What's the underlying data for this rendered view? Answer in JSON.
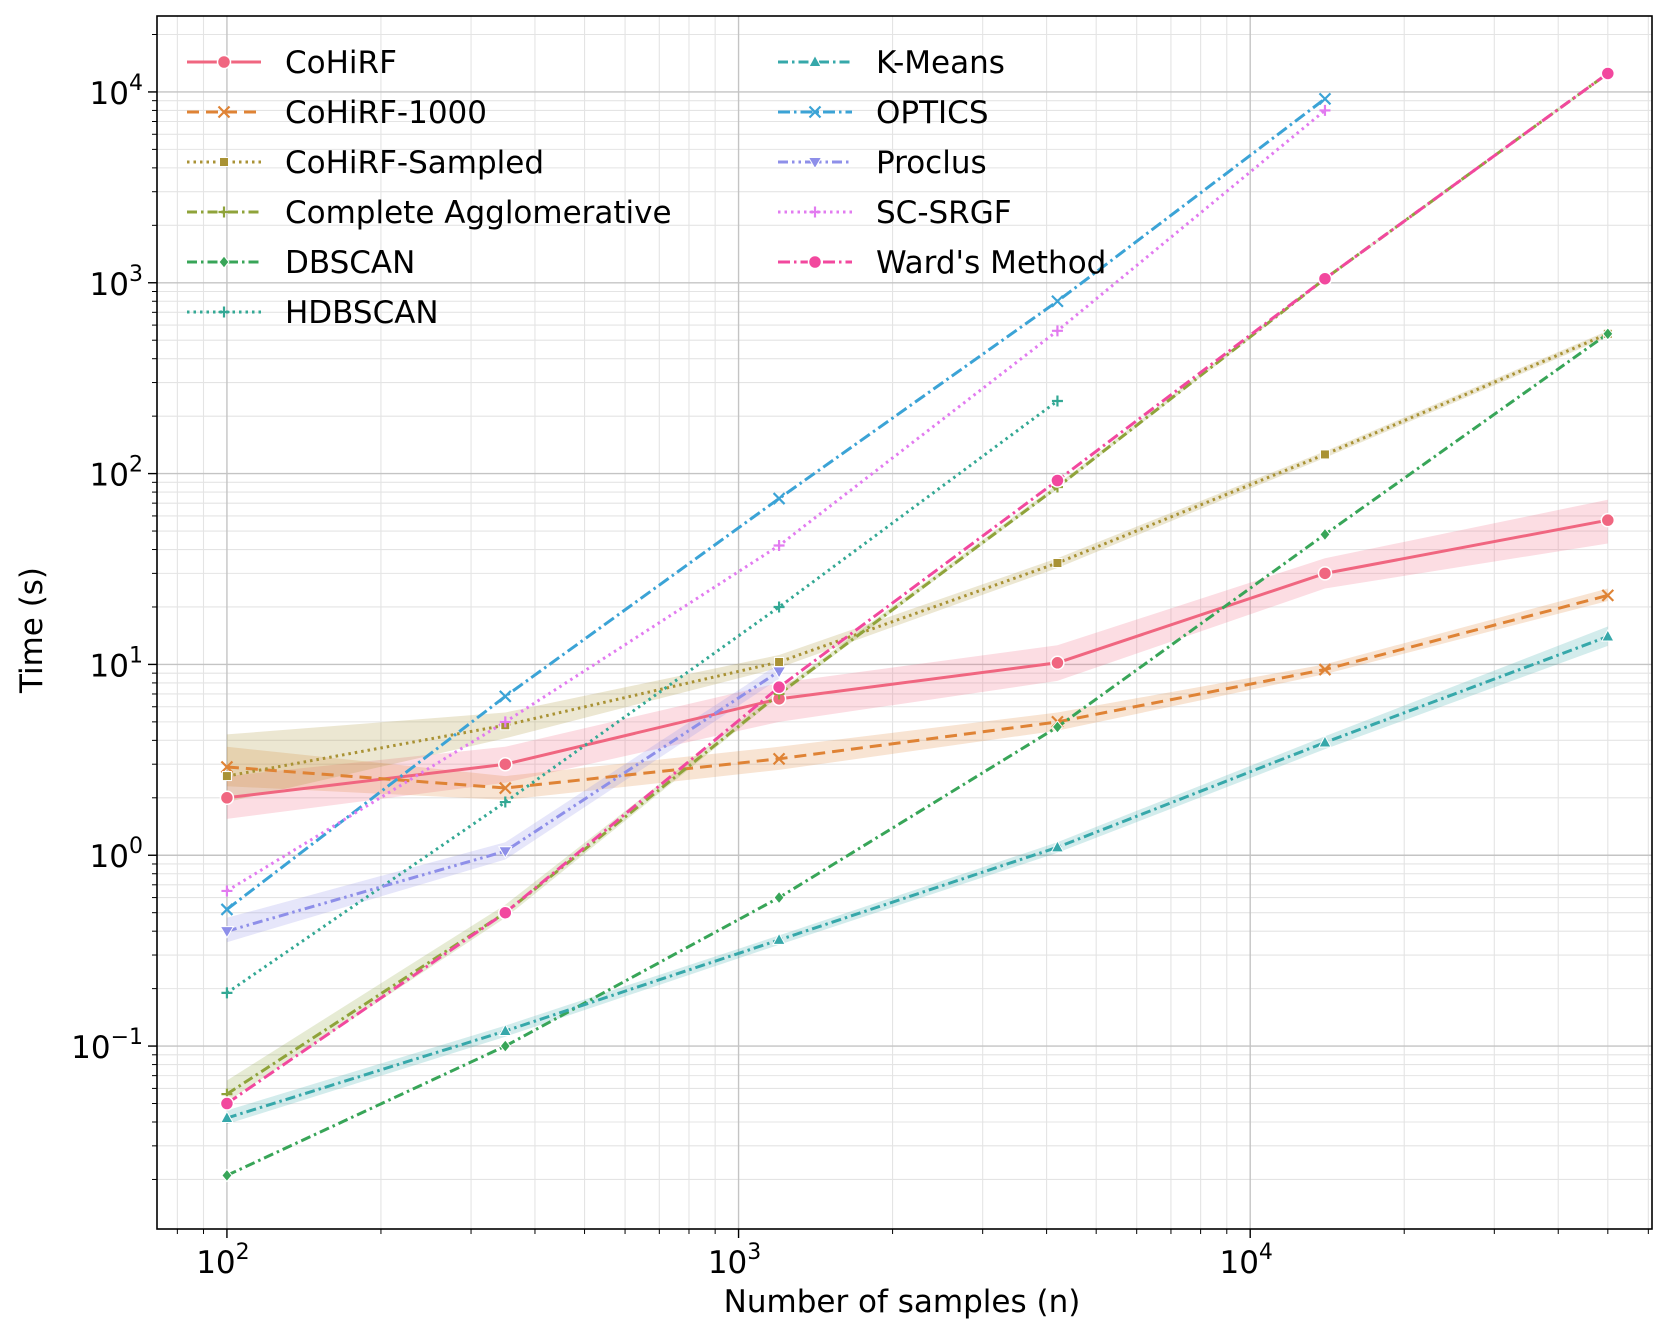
{
  "chart_data": {
    "type": "line",
    "title": "",
    "xlabel": "Number of samples (n)",
    "ylabel": "Time (s)",
    "xscale": "log",
    "yscale": "log",
    "xlim": [
      73,
      61000
    ],
    "ylim": [
      0.011,
      25000
    ],
    "grid": true,
    "legend_position": "top-left",
    "x_ticks": [
      {
        "value": 100,
        "base": "10",
        "exp": "2"
      },
      {
        "value": 1000,
        "base": "10",
        "exp": "3"
      },
      {
        "value": 10000,
        "base": "10",
        "exp": "4"
      }
    ],
    "y_ticks": [
      {
        "value": 0.1,
        "base": "10",
        "exp": "−1"
      },
      {
        "value": 1,
        "base": "10",
        "exp": "0"
      },
      {
        "value": 10,
        "base": "10",
        "exp": "1"
      },
      {
        "value": 100,
        "base": "10",
        "exp": "2"
      },
      {
        "value": 1000,
        "base": "10",
        "exp": "3"
      },
      {
        "value": 10000,
        "base": "10",
        "exp": "4"
      }
    ],
    "series": [
      {
        "name": "CoHiRF",
        "color": "#f06680",
        "dash": "",
        "marker": "circle",
        "x": [
          100,
          350,
          1200,
          4200,
          14000,
          50000
        ],
        "y": [
          2.0,
          3.0,
          6.6,
          10.2,
          30,
          57
        ],
        "band_low": [
          1.55,
          2.4,
          5.0,
          8.2,
          25,
          43
        ],
        "band_high": [
          2.6,
          3.7,
          8.0,
          12.6,
          36,
          73
        ]
      },
      {
        "name": "CoHiRF-1000",
        "color": "#df8335",
        "dash": "12,7",
        "marker": "x",
        "x": [
          100,
          350,
          1200,
          4200,
          14000,
          50000
        ],
        "y": [
          2.9,
          2.25,
          3.2,
          5.0,
          9.4,
          23
        ],
        "band_low": [
          2.3,
          1.95,
          2.8,
          4.5,
          8.9,
          21.5
        ],
        "band_high": [
          3.7,
          2.6,
          3.7,
          5.6,
          10.0,
          25
        ]
      },
      {
        "name": "CoHiRF-Sampled",
        "color": "#a99234",
        "dash": "2.5,4",
        "marker": "square",
        "x": [
          100,
          350,
          1200,
          4200,
          14000,
          50000
        ],
        "y": [
          2.6,
          4.8,
          10.3,
          34,
          126,
          540
        ],
        "band_low": [
          1.9,
          4.1,
          9.6,
          32,
          121,
          520
        ],
        "band_high": [
          4.3,
          5.6,
          11.2,
          36,
          131,
          560
        ]
      },
      {
        "name": "Complete Agglomerative",
        "color": "#8fa33a",
        "dash": "10,4,2.5,4",
        "marker": "plus",
        "x": [
          100,
          350,
          1200,
          4200,
          14000,
          50000
        ],
        "y": [
          0.056,
          0.5,
          7.0,
          85,
          1050,
          12500
        ],
        "band_low": [
          0.051,
          0.47,
          6.8,
          83,
          1030,
          12300
        ],
        "band_high": [
          0.066,
          0.55,
          7.3,
          88,
          1070,
          12700
        ]
      },
      {
        "name": "DBSCAN",
        "color": "#38a558",
        "dash": "10,4,2.5,4",
        "marker": "diamond",
        "x": [
          100,
          350,
          1200,
          4200,
          14000,
          50000
        ],
        "y": [
          0.021,
          0.1,
          0.6,
          4.7,
          48,
          540
        ]
      },
      {
        "name": "HDBSCAN",
        "color": "#33a894",
        "dash": "2.5,4",
        "marker": "plus",
        "x": [
          100,
          350,
          1200,
          4200
        ],
        "y": [
          0.19,
          1.9,
          20,
          240
        ]
      },
      {
        "name": "K-Means",
        "color": "#36a8aa",
        "dash": "10,4,2.5,4",
        "marker": "triangle",
        "x": [
          100,
          350,
          1200,
          4200,
          14000,
          50000
        ],
        "y": [
          0.042,
          0.12,
          0.36,
          1.1,
          3.9,
          14
        ],
        "band_low": [
          0.039,
          0.112,
          0.34,
          1.03,
          3.6,
          12.5
        ],
        "band_high": [
          0.046,
          0.128,
          0.38,
          1.17,
          4.2,
          15.8
        ]
      },
      {
        "name": "OPTICS",
        "color": "#3ba3d6",
        "dash": "12,4,2.5,4",
        "marker": "x",
        "x": [
          100,
          350,
          1200,
          4200,
          14000
        ],
        "y": [
          0.52,
          6.8,
          74,
          800,
          9200
        ]
      },
      {
        "name": "Proclus",
        "color": "#8e8fe9",
        "dash": "10,4,2.5,4,2.5,4",
        "marker": "triangle-down",
        "x": [
          100,
          350,
          1200
        ],
        "y": [
          0.4,
          1.05,
          9.2
        ],
        "band_low": [
          0.35,
          0.95,
          8.4
        ],
        "band_high": [
          0.47,
          1.17,
          10.1
        ]
      },
      {
        "name": "SC-SRGF",
        "color": "#e27bf0",
        "dash": "2.5,4",
        "marker": "plus",
        "x": [
          100,
          350,
          1200,
          4200,
          14000
        ],
        "y": [
          0.65,
          5.0,
          42,
          560,
          8000
        ]
      },
      {
        "name": "Ward's Method",
        "color": "#f2489e",
        "dash": "12,4,2.5,4",
        "marker": "circle",
        "x": [
          100,
          350,
          1200,
          4200,
          14000,
          50000
        ],
        "y": [
          0.05,
          0.5,
          7.6,
          92,
          1050,
          12500
        ]
      }
    ]
  }
}
